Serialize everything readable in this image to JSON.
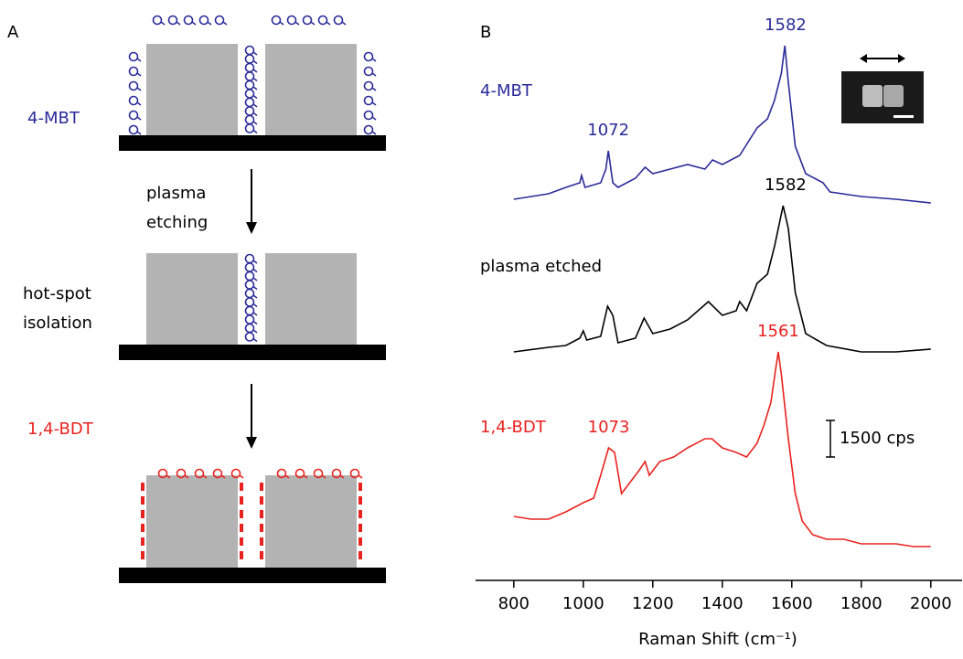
{
  "panel_a": {
    "letter": "A",
    "steps": [
      {
        "label": [
          "4-MBT"
        ]
      },
      {
        "label": [
          "plasma",
          "etching"
        ]
      },
      {
        "label": [
          "hot-spot",
          "isolation"
        ]
      },
      {
        "label": [
          "1,4-BDT"
        ]
      }
    ]
  },
  "chart_data": {
    "type": "line",
    "letter": "B",
    "x_label": "Raman Shift (cm⁻¹)",
    "xlim": [
      690,
      2090
    ],
    "ylim": [
      0,
      22500
    ],
    "xticks": [
      800,
      1000,
      1200,
      1400,
      1600,
      1800,
      2000
    ],
    "scale_bar": {
      "value": 1500,
      "label": "1500 cps"
    },
    "series": [
      {
        "name": "4-MBT",
        "color": "#2b2b9a",
        "peaks": [
          1072,
          1582
        ],
        "x": [
          800,
          900,
          950,
          990,
          995,
          1005,
          1050,
          1065,
          1072,
          1085,
          1100,
          1150,
          1178,
          1200,
          1250,
          1300,
          1350,
          1372,
          1400,
          1450,
          1500,
          1530,
          1550,
          1570,
          1580,
          1590,
          1610,
          1640,
          1690,
          1710,
          1800,
          1900,
          2000
        ],
        "values": [
          15637,
          15862,
          16125,
          16312,
          16612,
          16125,
          16312,
          16875,
          17625,
          16312,
          16125,
          16500,
          16950,
          16687,
          16875,
          17062,
          16875,
          17250,
          17062,
          17437,
          18562,
          18937,
          19687,
          20812,
          21937,
          20437,
          17812,
          16687,
          16312,
          15937,
          15750,
          15637,
          15487
        ]
      },
      {
        "name": "plasma etched",
        "color": "#000000",
        "peaks": [
          1582
        ],
        "x": [
          800,
          900,
          950,
          990,
          1000,
          1010,
          1050,
          1070,
          1085,
          1100,
          1150,
          1175,
          1200,
          1250,
          1300,
          1360,
          1400,
          1440,
          1450,
          1470,
          1500,
          1530,
          1550,
          1575,
          1590,
          1610,
          1640,
          1700,
          1800,
          1900,
          2000
        ],
        "values": [
          9375,
          9562,
          9637,
          9937,
          10237,
          9862,
          10012,
          11250,
          10875,
          9750,
          9937,
          10762,
          10125,
          10312,
          10687,
          11437,
          10875,
          11062,
          11437,
          11062,
          12187,
          12562,
          13687,
          15375,
          14437,
          11812,
          10125,
          9637,
          9375,
          9375,
          9487
        ]
      },
      {
        "name": "1,4-BDT",
        "color": "#e8231f",
        "peaks": [
          1073,
          1561
        ],
        "x": [
          800,
          850,
          900,
          950,
          1000,
          1030,
          1050,
          1073,
          1090,
          1110,
          1130,
          1160,
          1178,
          1190,
          1220,
          1260,
          1300,
          1350,
          1370,
          1400,
          1440,
          1470,
          1500,
          1520,
          1540,
          1555,
          1561,
          1570,
          1590,
          1610,
          1630,
          1660,
          1700,
          1750,
          1800,
          1850,
          1900,
          1950,
          2000
        ],
        "values": [
          2625,
          2512,
          2512,
          2812,
          3187,
          3375,
          4312,
          5437,
          5250,
          3562,
          3937,
          4500,
          4875,
          4312,
          4875,
          5062,
          5437,
          5812,
          5812,
          5437,
          5250,
          5062,
          5625,
          6375,
          7312,
          8812,
          9375,
          8437,
          5812,
          3562,
          2437,
          1875,
          1687,
          1687,
          1500,
          1500,
          1500,
          1387,
          1387
        ]
      }
    ]
  }
}
